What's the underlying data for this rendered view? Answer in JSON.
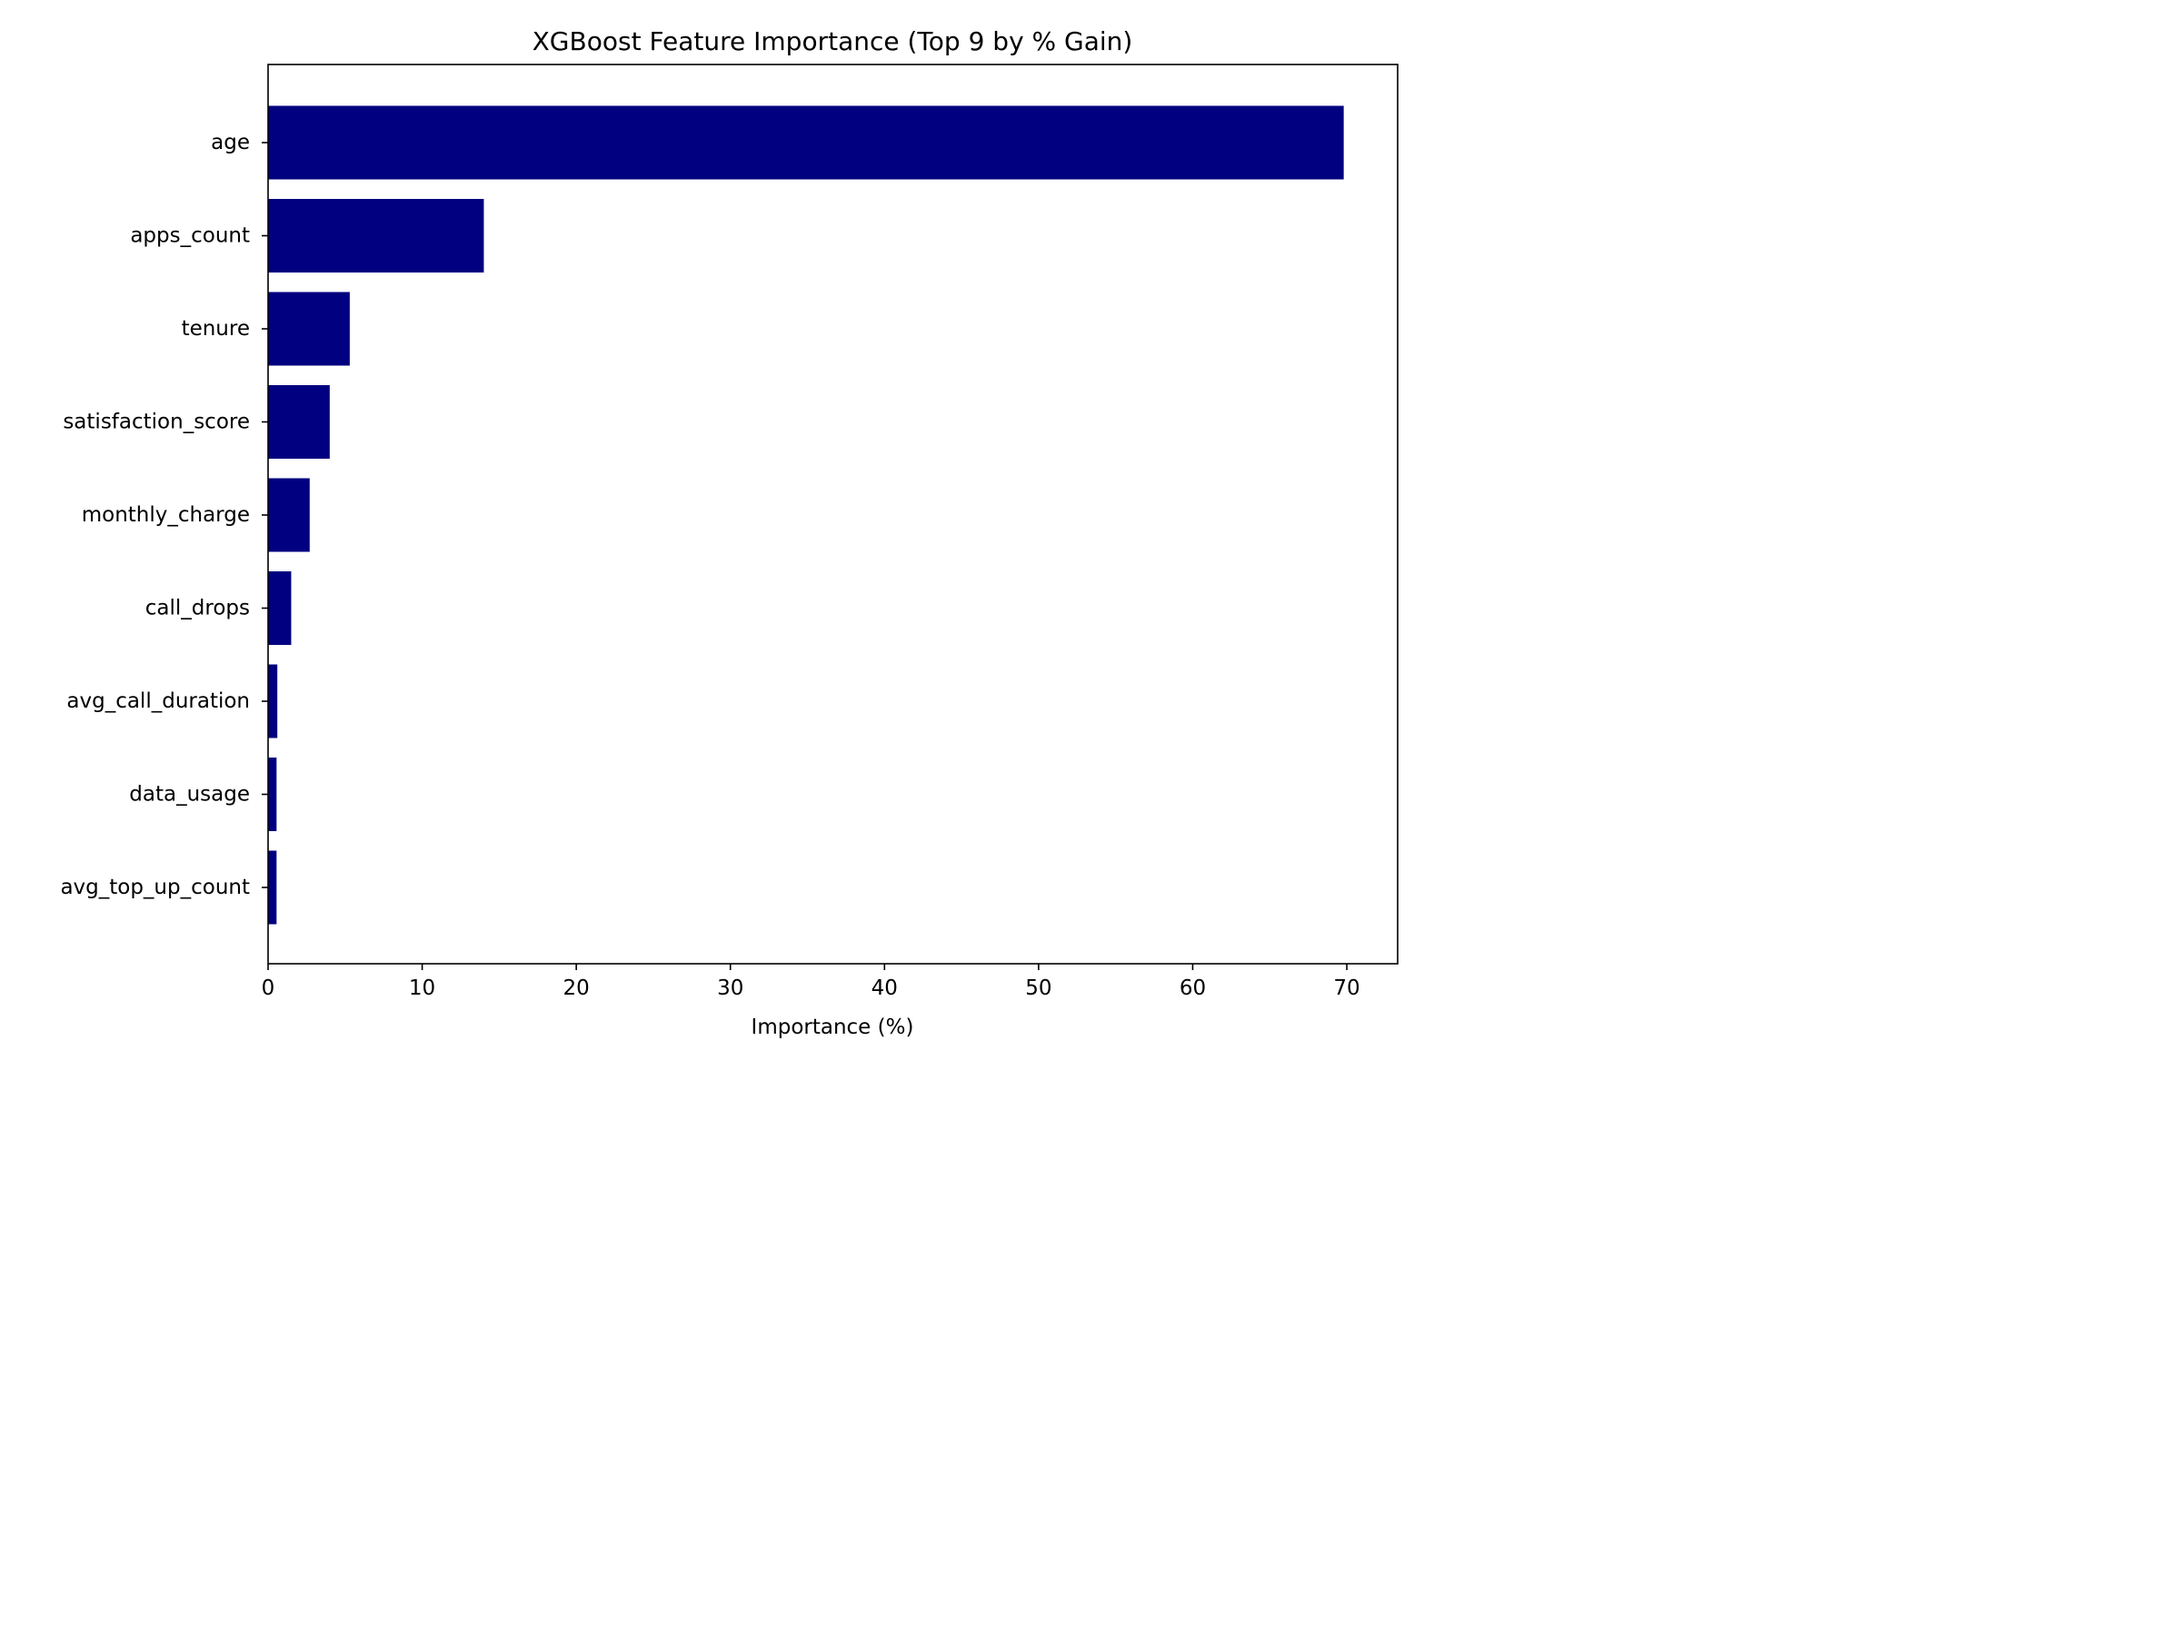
{
  "chart_data": {
    "type": "bar",
    "orientation": "horizontal",
    "title": "XGBoost Feature Importance (Top 9 by % Gain)",
    "xlabel": "Importance (%)",
    "ylabel": "",
    "categories": [
      "age",
      "apps_count",
      "tenure",
      "satisfaction_score",
      "monthly_charge",
      "call_drops",
      "avg_call_duration",
      "data_usage",
      "avg_top_up_count"
    ],
    "values": [
      69.8,
      14.0,
      5.3,
      4.0,
      2.7,
      1.5,
      0.6,
      0.55,
      0.55
    ],
    "xlim": [
      0,
      73.3
    ],
    "xticks": [
      0,
      10,
      20,
      30,
      40,
      50,
      60,
      70
    ],
    "bar_color": "#000080",
    "grid": false,
    "legend": "none"
  }
}
